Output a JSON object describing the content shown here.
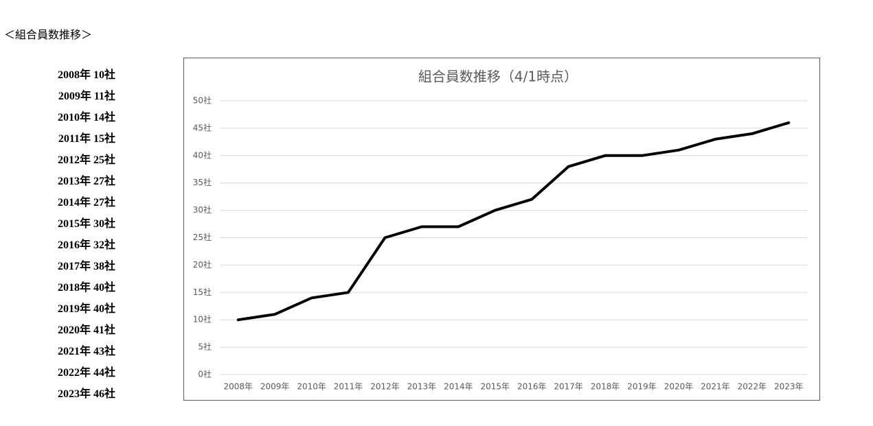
{
  "heading": "＜組合員数推移＞",
  "list": [
    "2008年 10社",
    "2009年 11社",
    "2010年 14社",
    "2011年 15社",
    "2012年 25社",
    "2013年 27社",
    "2014年 27社",
    "2015年 30社",
    "2016年 32社",
    "2017年 38社",
    "2018年 40社",
    "2019年 40社",
    "2020年 41社",
    "2021年 43社",
    "2022年 44社",
    "2023年 46社"
  ],
  "chart_data": {
    "type": "line",
    "title": "組合員数推移（4/1時点）",
    "categories": [
      "2008年",
      "2009年",
      "2010年",
      "2011年",
      "2012年",
      "2013年",
      "2014年",
      "2015年",
      "2016年",
      "2017年",
      "2018年",
      "2019年",
      "2020年",
      "2021年",
      "2022年",
      "2023年"
    ],
    "values": [
      10,
      11,
      14,
      15,
      25,
      27,
      27,
      30,
      32,
      38,
      40,
      40,
      41,
      43,
      44,
      46
    ],
    "color": "#000000",
    "ylim": [
      0,
      50
    ],
    "yticks": [
      {
        "value": 0,
        "label": "0社"
      },
      {
        "value": 5,
        "label": "5社"
      },
      {
        "value": 10,
        "label": "10社"
      },
      {
        "value": 15,
        "label": "15社"
      },
      {
        "value": 20,
        "label": "20社"
      },
      {
        "value": 25,
        "label": "25社"
      },
      {
        "value": 30,
        "label": "30社"
      },
      {
        "value": 35,
        "label": "35社"
      },
      {
        "value": 40,
        "label": "40社"
      },
      {
        "value": 45,
        "label": "45社"
      },
      {
        "value": 50,
        "label": "50社"
      }
    ],
    "grid": true
  }
}
